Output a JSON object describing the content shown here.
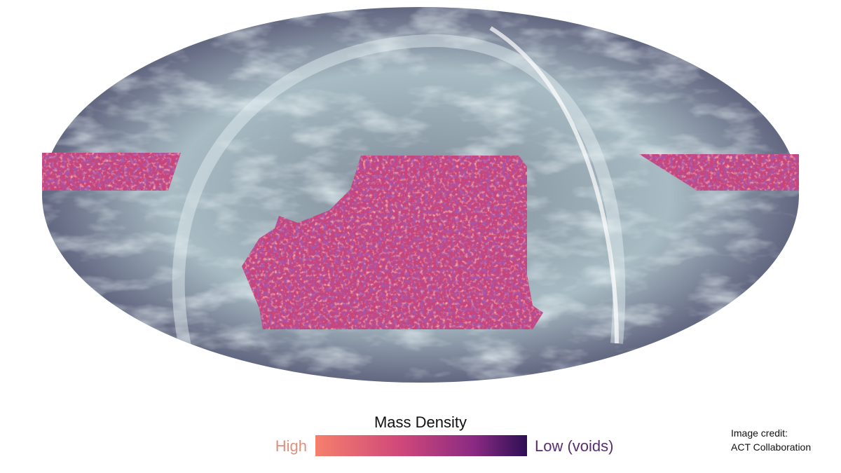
{
  "colorbar": {
    "title": "Mass Density",
    "high_label": "High",
    "low_label": "Low (voids)"
  },
  "credit": {
    "line1": "Image credit:",
    "line2": "ACT Collaboration"
  }
}
